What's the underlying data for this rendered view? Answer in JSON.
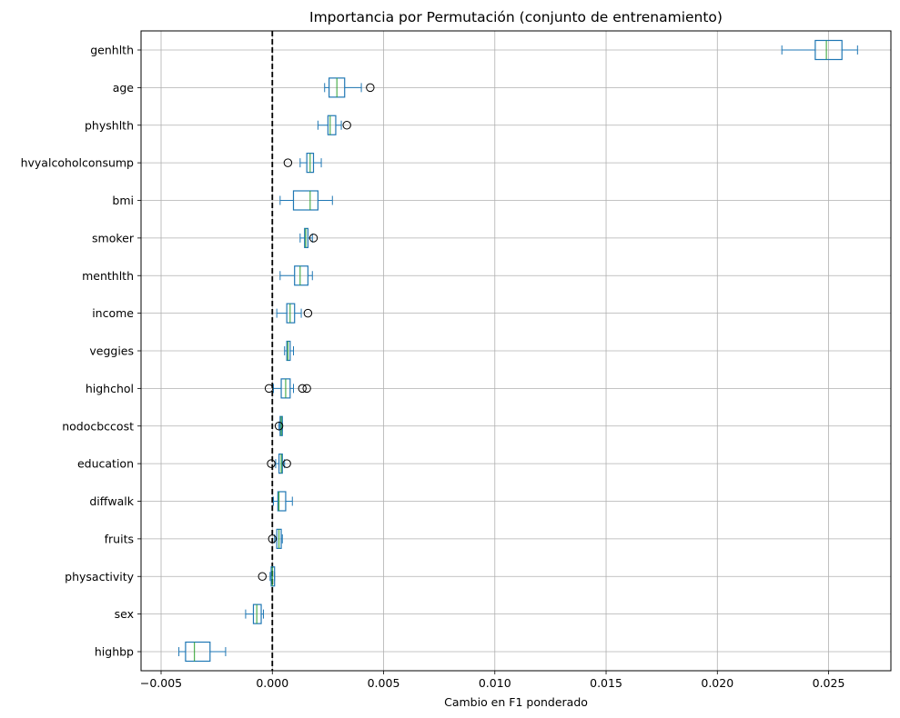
{
  "chart_data": {
    "type": "box",
    "orientation": "horizontal",
    "title": "Importancia por Permutación (conjunto de entrenamiento)",
    "xlabel": "Cambio en F1 ponderado",
    "ylabel": "",
    "xlim": [
      -0.0059,
      0.0278
    ],
    "x_ticks": [
      -0.005,
      0.0,
      0.005,
      0.01,
      0.015,
      0.02,
      0.025
    ],
    "x_tick_labels": [
      "−0.005",
      "0.000",
      "0.005",
      "0.010",
      "0.015",
      "0.020",
      "0.025"
    ],
    "grid": true,
    "reference_line": {
      "x": 0.0,
      "style": "dashed",
      "color": "#000000"
    },
    "colors": {
      "box": "#1f77b4",
      "median": "#2ca02c",
      "grid": "#b0b0b0"
    },
    "features": [
      {
        "name": "genhlth",
        "whisker_low": 0.0229,
        "q1": 0.0244,
        "median": 0.0249,
        "q3": 0.0256,
        "whisker_high": 0.0263,
        "outliers": []
      },
      {
        "name": "age",
        "whisker_low": 0.00235,
        "q1": 0.00255,
        "median": 0.0029,
        "q3": 0.00325,
        "whisker_high": 0.004,
        "outliers": [
          0.0044
        ]
      },
      {
        "name": "physhlth",
        "whisker_low": 0.00205,
        "q1": 0.0025,
        "median": 0.0026,
        "q3": 0.00285,
        "whisker_high": 0.0031,
        "outliers": [
          0.00335
        ]
      },
      {
        "name": "hvyalcoholconsump",
        "whisker_low": 0.00125,
        "q1": 0.00155,
        "median": 0.0017,
        "q3": 0.00185,
        "whisker_high": 0.0022,
        "outliers": [
          0.0007
        ]
      },
      {
        "name": "bmi",
        "whisker_low": 0.00035,
        "q1": 0.00095,
        "median": 0.0017,
        "q3": 0.00205,
        "whisker_high": 0.0027,
        "outliers": []
      },
      {
        "name": "smoker",
        "whisker_low": 0.00125,
        "q1": 0.00145,
        "median": 0.0015,
        "q3": 0.0016,
        "whisker_high": 0.0018,
        "outliers": [
          0.00185
        ]
      },
      {
        "name": "menthlth",
        "whisker_low": 0.00035,
        "q1": 0.001,
        "median": 0.00125,
        "q3": 0.0016,
        "whisker_high": 0.0018,
        "outliers": []
      },
      {
        "name": "income",
        "whisker_low": 0.0002,
        "q1": 0.00065,
        "median": 0.0008,
        "q3": 0.001,
        "whisker_high": 0.0013,
        "outliers": [
          0.0016
        ]
      },
      {
        "name": "veggies",
        "whisker_low": 0.00055,
        "q1": 0.00065,
        "median": 0.0007,
        "q3": 0.0008,
        "whisker_high": 0.00095,
        "outliers": []
      },
      {
        "name": "highchol",
        "whisker_low": 5e-05,
        "q1": 0.0004,
        "median": 0.0006,
        "q3": 0.0008,
        "whisker_high": 0.00095,
        "outliers": [
          -0.00015,
          0.00135,
          0.00155
        ]
      },
      {
        "name": "nodocbccost",
        "whisker_low": 0.0003,
        "q1": 0.00035,
        "median": 0.0004,
        "q3": 0.00045,
        "whisker_high": 0.00045,
        "outliers": [
          0.0003
        ]
      },
      {
        "name": "education",
        "whisker_low": 0.00015,
        "q1": 0.0003,
        "median": 0.0004,
        "q3": 0.00045,
        "whisker_high": 0.00055,
        "outliers": [
          -5e-05,
          0.00065
        ]
      },
      {
        "name": "diffwalk",
        "whisker_low": 5e-05,
        "q1": 0.00025,
        "median": 0.0003,
        "q3": 0.0006,
        "whisker_high": 0.0009,
        "outliers": []
      },
      {
        "name": "fruits",
        "whisker_low": 0.0001,
        "q1": 0.0002,
        "median": 0.0003,
        "q3": 0.0004,
        "whisker_high": 0.00045,
        "outliers": [
          0.0
        ]
      },
      {
        "name": "physactivity",
        "whisker_low": -0.0001,
        "q1": -5e-05,
        "median": 0.0,
        "q3": 0.0001,
        "whisker_high": 0.0001,
        "outliers": [
          -0.00045
        ]
      },
      {
        "name": "sex",
        "whisker_low": -0.0012,
        "q1": -0.00085,
        "median": -0.0007,
        "q3": -0.0005,
        "whisker_high": -0.0004,
        "outliers": []
      },
      {
        "name": "highbp",
        "whisker_low": -0.0042,
        "q1": -0.0039,
        "median": -0.0035,
        "q3": -0.0028,
        "whisker_high": -0.0021,
        "outliers": []
      }
    ]
  }
}
